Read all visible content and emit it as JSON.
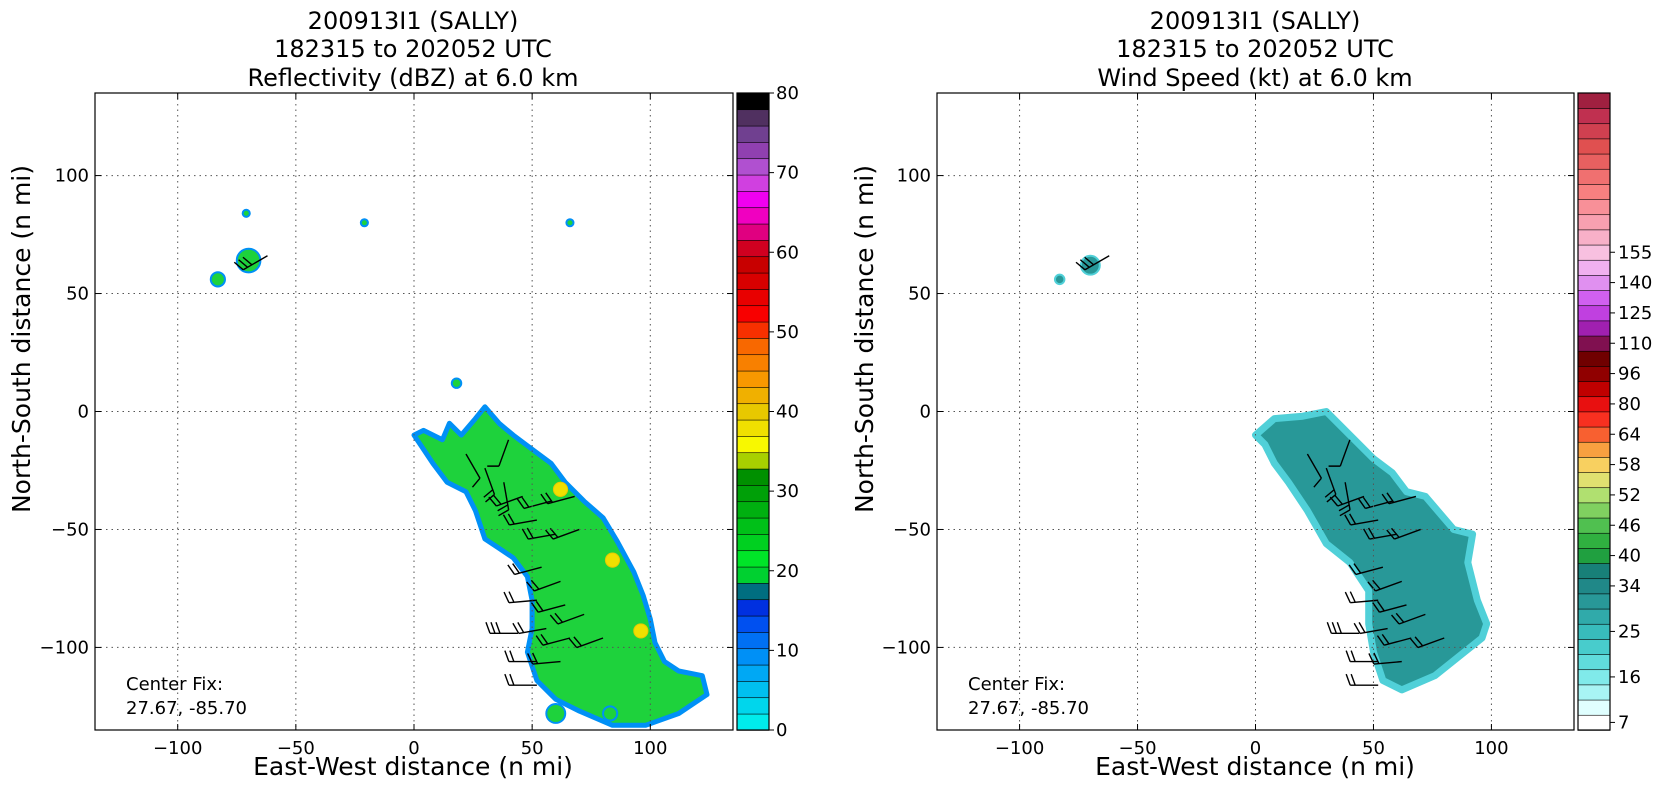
{
  "chart_data": [
    {
      "type": "heatmap",
      "title_lines": [
        "200913I1 (SALLY)",
        "182315 to 202052 UTC",
        "Reflectivity (dBZ) at 6.0 km"
      ],
      "xlabel": "East-West distance (n mi)",
      "ylabel": "North-South distance (n mi)",
      "xlim": [
        -135,
        135
      ],
      "ylim": [
        -135,
        135
      ],
      "x_ticks": [
        "−100",
        "−50",
        "0",
        "50",
        "100"
      ],
      "x_tick_values": [
        -100,
        -50,
        0,
        50,
        100
      ],
      "y_ticks": [
        "100",
        "50",
        "0",
        "−50",
        "−100"
      ],
      "y_tick_values": [
        100,
        50,
        0,
        -50,
        -100
      ],
      "grid": true,
      "annotation_lines": [
        "Center Fix:",
        "27.67, -85.70"
      ],
      "colorbar": {
        "range": [
          0,
          80
        ],
        "step": 2.5,
        "tick_labels": [
          "0",
          "10",
          "20",
          "30",
          "40",
          "50",
          "60",
          "70",
          "80"
        ],
        "tick_values": [
          0,
          10,
          20,
          30,
          40,
          50,
          60,
          70,
          80
        ],
        "colors": [
          "#00ecec",
          "#00d6ec",
          "#00c0f0",
          "#00a8f4",
          "#0090f6",
          "#0070f4",
          "#0050f0",
          "#0030e0",
          "#006e80",
          "#00d030",
          "#00e428",
          "#00d020",
          "#00c018",
          "#00b010",
          "#00a008",
          "#009000",
          "#a8d000",
          "#f8f800",
          "#f0e000",
          "#e8c800",
          "#f0b000",
          "#f89800",
          "#f88000",
          "#f86800",
          "#f83000",
          "#f80000",
          "#e80000",
          "#d80000",
          "#c80000",
          "#d00020",
          "#e00080",
          "#f000c0",
          "#f000f0",
          "#d040e0",
          "#b050d0",
          "#9040b0",
          "#704090",
          "#503060",
          "#000000"
        ]
      },
      "echo_color": "#1ed23c",
      "echo_edge_color": "#0090f6",
      "echo_polygon": [
        [
          15,
          -5
        ],
        [
          20,
          -10
        ],
        [
          26,
          -3
        ],
        [
          30,
          2
        ],
        [
          36,
          -5
        ],
        [
          42,
          -10
        ],
        [
          50,
          -16
        ],
        [
          58,
          -22
        ],
        [
          64,
          -30
        ],
        [
          72,
          -38
        ],
        [
          80,
          -45
        ],
        [
          86,
          -55
        ],
        [
          93,
          -68
        ],
        [
          97,
          -78
        ],
        [
          100,
          -88
        ],
        [
          102,
          -98
        ],
        [
          106,
          -106
        ],
        [
          112,
          -110
        ],
        [
          122,
          -112
        ],
        [
          124,
          -120
        ],
        [
          118,
          -124
        ],
        [
          112,
          -128
        ],
        [
          98,
          -133
        ],
        [
          84,
          -133
        ],
        [
          70,
          -127
        ],
        [
          60,
          -122
        ],
        [
          52,
          -114
        ],
        [
          48,
          -102
        ],
        [
          50,
          -92
        ],
        [
          50,
          -80
        ],
        [
          48,
          -70
        ],
        [
          42,
          -62
        ],
        [
          36,
          -58
        ],
        [
          30,
          -54
        ],
        [
          26,
          -42
        ],
        [
          22,
          -34
        ],
        [
          14,
          -30
        ],
        [
          8,
          -22
        ],
        [
          4,
          -16
        ],
        [
          0,
          -10
        ],
        [
          4,
          -8
        ],
        [
          12,
          -12
        ]
      ],
      "echo_cells": [
        {
          "x": -70,
          "y": 64,
          "r": 5
        },
        {
          "x": -83,
          "y": 56,
          "r": 3
        },
        {
          "x": 18,
          "y": 12,
          "r": 2
        },
        {
          "x": -71,
          "y": 84,
          "r": 1.5
        },
        {
          "x": -21,
          "y": 80,
          "r": 1.5
        },
        {
          "x": 66,
          "y": 80,
          "r": 1.5
        },
        {
          "x": 60,
          "y": -128,
          "r": 4
        },
        {
          "x": 83,
          "y": -128,
          "r": 3
        }
      ],
      "yellow_cells": [
        {
          "x": 62,
          "y": -33,
          "r": 3
        },
        {
          "x": 84,
          "y": -63,
          "r": 3
        },
        {
          "x": 96,
          "y": -93,
          "r": 3
        }
      ],
      "wind_barbs": [
        {
          "x": -62,
          "y": 66,
          "dir": 240,
          "barbs": 3
        },
        {
          "x": 40,
          "y": -12,
          "dir": 200,
          "barbs": 1
        },
        {
          "x": 22,
          "y": -18,
          "dir": 150,
          "barbs": 1
        },
        {
          "x": 30,
          "y": -24,
          "dir": 160,
          "barbs": 2
        },
        {
          "x": 38,
          "y": -30,
          "dir": 170,
          "barbs": 2
        },
        {
          "x": 46,
          "y": -36,
          "dir": 250,
          "barbs": 2
        },
        {
          "x": 58,
          "y": -38,
          "dir": 255,
          "barbs": 2
        },
        {
          "x": 68,
          "y": -36,
          "dir": 255,
          "barbs": 2
        },
        {
          "x": 52,
          "y": -46,
          "dir": 260,
          "barbs": 2
        },
        {
          "x": 60,
          "y": -52,
          "dir": 260,
          "barbs": 2
        },
        {
          "x": 70,
          "y": -50,
          "dir": 250,
          "barbs": 2
        },
        {
          "x": 54,
          "y": -66,
          "dir": 255,
          "barbs": 2
        },
        {
          "x": 62,
          "y": -72,
          "dir": 250,
          "barbs": 2
        },
        {
          "x": 52,
          "y": -80,
          "dir": 265,
          "barbs": 2
        },
        {
          "x": 64,
          "y": -82,
          "dir": 255,
          "barbs": 2
        },
        {
          "x": 72,
          "y": -86,
          "dir": 250,
          "barbs": 2
        },
        {
          "x": 44,
          "y": -94,
          "dir": 270,
          "barbs": 3
        },
        {
          "x": 56,
          "y": -92,
          "dir": 260,
          "barbs": 2
        },
        {
          "x": 66,
          "y": -96,
          "dir": 255,
          "barbs": 2
        },
        {
          "x": 80,
          "y": -96,
          "dir": 250,
          "barbs": 2
        },
        {
          "x": 52,
          "y": -106,
          "dir": 270,
          "barbs": 2
        },
        {
          "x": 62,
          "y": -106,
          "dir": 265,
          "barbs": 2
        },
        {
          "x": 52,
          "y": -116,
          "dir": 270,
          "barbs": 2
        }
      ]
    },
    {
      "type": "heatmap",
      "title_lines": [
        "200913I1 (SALLY)",
        "182315 to 202052 UTC",
        "Wind Speed (kt) at 6.0 km"
      ],
      "xlabel": "East-West distance (n mi)",
      "ylabel": "North-South distance (n mi)",
      "xlim": [
        -135,
        135
      ],
      "ylim": [
        -135,
        135
      ],
      "x_ticks": [
        "−100",
        "−50",
        "0",
        "50",
        "100"
      ],
      "x_tick_values": [
        -100,
        -50,
        0,
        50,
        100
      ],
      "y_ticks": [
        "100",
        "50",
        "0",
        "−50",
        "−100"
      ],
      "y_tick_values": [
        100,
        50,
        0,
        -50,
        -100
      ],
      "grid": true,
      "annotation_lines": [
        "Center Fix:",
        "27.67, -85.70"
      ],
      "colorbar": {
        "tick_labels": [
          "7",
          "16",
          "25",
          "34",
          "40",
          "46",
          "52",
          "58",
          "64",
          "80",
          "96",
          "110",
          "125",
          "140",
          "155"
        ],
        "tick_bins": [
          0,
          3,
          6,
          9,
          11,
          13,
          15,
          17,
          19,
          21,
          23,
          25,
          27,
          29,
          31
        ],
        "colors": [
          "#ffffff",
          "#e0ffff",
          "#a8f4f4",
          "#80eaea",
          "#60dcdc",
          "#48cccc",
          "#38bcbc",
          "#30aaaa",
          "#289898",
          "#208888",
          "#188078",
          "#20a040",
          "#30b040",
          "#50c050",
          "#80d060",
          "#b0e070",
          "#e0e070",
          "#f8d060",
          "#f8a040",
          "#f86030",
          "#f83020",
          "#e81010",
          "#c00000",
          "#900000",
          "#700000",
          "#801050",
          "#a020b0",
          "#c040e0",
          "#d060f0",
          "#e090f0",
          "#f0b0f0",
          "#f8c0e0",
          "#f8b0c8",
          "#f8a0b0",
          "#f89098",
          "#f88080",
          "#f07070",
          "#e86060",
          "#e05050",
          "#d04050",
          "#c03050",
          "#a02040"
        ]
      },
      "echo_color": "#289898",
      "echo_light_color": "#50d0d8",
      "echo_polygon": [
        [
          0,
          -10
        ],
        [
          8,
          -3
        ],
        [
          20,
          -2
        ],
        [
          30,
          0
        ],
        [
          40,
          -10
        ],
        [
          50,
          -20
        ],
        [
          58,
          -26
        ],
        [
          64,
          -34
        ],
        [
          72,
          -36
        ],
        [
          84,
          -50
        ],
        [
          92,
          -52
        ],
        [
          90,
          -64
        ],
        [
          94,
          -80
        ],
        [
          98,
          -90
        ],
        [
          96,
          -96
        ],
        [
          86,
          -104
        ],
        [
          76,
          -112
        ],
        [
          62,
          -118
        ],
        [
          54,
          -114
        ],
        [
          50,
          -102
        ],
        [
          48,
          -90
        ],
        [
          48,
          -76
        ],
        [
          40,
          -64
        ],
        [
          30,
          -56
        ],
        [
          22,
          -42
        ],
        [
          14,
          -30
        ],
        [
          8,
          -22
        ],
        [
          4,
          -14
        ]
      ],
      "echo_cells": [
        {
          "x": -70,
          "y": 62,
          "r": 4
        },
        {
          "x": -83,
          "y": 56,
          "r": 2
        }
      ],
      "wind_barbs": [
        {
          "x": -62,
          "y": 66,
          "dir": 240,
          "barbs": 3
        },
        {
          "x": 40,
          "y": -12,
          "dir": 200,
          "barbs": 1
        },
        {
          "x": 22,
          "y": -18,
          "dir": 150,
          "barbs": 1
        },
        {
          "x": 30,
          "y": -24,
          "dir": 160,
          "barbs": 2
        },
        {
          "x": 38,
          "y": -30,
          "dir": 170,
          "barbs": 2
        },
        {
          "x": 46,
          "y": -36,
          "dir": 250,
          "barbs": 2
        },
        {
          "x": 58,
          "y": -38,
          "dir": 255,
          "barbs": 2
        },
        {
          "x": 68,
          "y": -36,
          "dir": 255,
          "barbs": 2
        },
        {
          "x": 52,
          "y": -46,
          "dir": 260,
          "barbs": 2
        },
        {
          "x": 60,
          "y": -52,
          "dir": 260,
          "barbs": 2
        },
        {
          "x": 70,
          "y": -50,
          "dir": 250,
          "barbs": 2
        },
        {
          "x": 54,
          "y": -66,
          "dir": 255,
          "barbs": 2
        },
        {
          "x": 62,
          "y": -72,
          "dir": 250,
          "barbs": 2
        },
        {
          "x": 52,
          "y": -80,
          "dir": 265,
          "barbs": 2
        },
        {
          "x": 64,
          "y": -82,
          "dir": 255,
          "barbs": 2
        },
        {
          "x": 72,
          "y": -86,
          "dir": 250,
          "barbs": 2
        },
        {
          "x": 44,
          "y": -94,
          "dir": 270,
          "barbs": 3
        },
        {
          "x": 56,
          "y": -92,
          "dir": 260,
          "barbs": 2
        },
        {
          "x": 66,
          "y": -96,
          "dir": 255,
          "barbs": 2
        },
        {
          "x": 80,
          "y": -96,
          "dir": 250,
          "barbs": 2
        },
        {
          "x": 52,
          "y": -106,
          "dir": 270,
          "barbs": 2
        },
        {
          "x": 62,
          "y": -106,
          "dir": 265,
          "barbs": 2
        },
        {
          "x": 52,
          "y": -116,
          "dir": 270,
          "barbs": 2
        }
      ]
    }
  ]
}
